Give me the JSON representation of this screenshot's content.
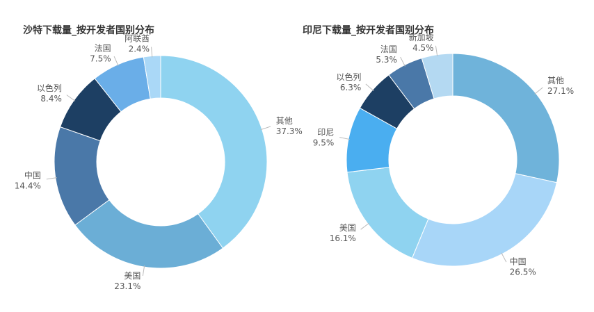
{
  "chart_data": [
    {
      "type": "pie",
      "title": "沙特下载量_按开发者国别分布",
      "categories": [
        "其他",
        "美国",
        "中国",
        "以色列",
        "法国",
        "阿联酋"
      ],
      "values": [
        37.3,
        23.1,
        14.4,
        8.4,
        7.5,
        2.4
      ],
      "value_labels": [
        "37.3%",
        "23.1%",
        "14.4%",
        "8.4%",
        "7.5%",
        "2.4%"
      ],
      "colors": [
        "#8fd3f0",
        "#6baed6",
        "#4a78a8",
        "#1d3f63",
        "#6aaee8",
        "#aad8f7"
      ],
      "legend": "none"
    },
    {
      "type": "pie",
      "title": "印尼下载量_按开发者国别分布",
      "categories": [
        "其他",
        "中国",
        "美国",
        "印尼",
        "以色列",
        "法国",
        "新加坡"
      ],
      "values": [
        27.1,
        26.5,
        16.1,
        9.5,
        6.3,
        5.3,
        4.5
      ],
      "value_labels": [
        "27.1%",
        "26.5%",
        "16.1%",
        "9.5%",
        "6.3%",
        "5.3%",
        "4.5%"
      ],
      "colors": [
        "#6fb3da",
        "#a8d6f8",
        "#8fd3f0",
        "#4aaef0",
        "#1d3f63",
        "#4a78a8",
        "#b4d9f2"
      ],
      "legend": "none"
    }
  ]
}
